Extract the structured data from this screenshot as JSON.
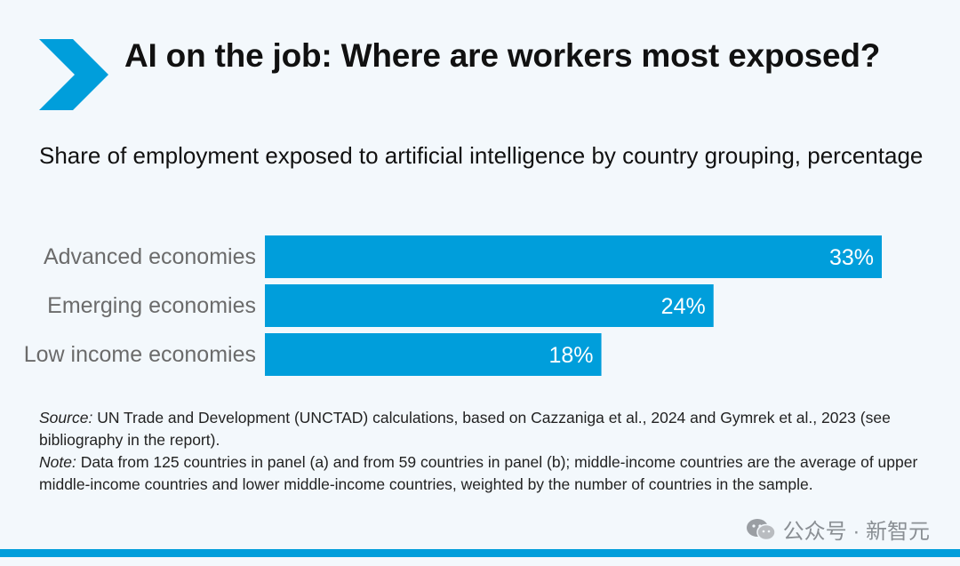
{
  "header": {
    "title": "AI on the job: Where are workers most exposed?",
    "subtitle": "Share of employment exposed to artificial intelligence by country grouping, percentage"
  },
  "chart_data": {
    "type": "bar",
    "orientation": "horizontal",
    "categories": [
      "Advanced economies",
      "Emerging economies",
      "Low income economies"
    ],
    "values": [
      33,
      24,
      18
    ],
    "value_labels": [
      "33%",
      "24%",
      "18%"
    ],
    "title": "",
    "xlabel": "",
    "ylabel": "",
    "xlim": [
      0,
      33
    ],
    "grid": false,
    "bar_color": "#009edb"
  },
  "notes": {
    "source_label": "Source:",
    "source_text": "UN Trade and Development (UNCTAD) calculations, based on Cazzaniga et al., 2024 and Gymrek et al., 2023 (see bibliography in the report).",
    "note_label": "Note:",
    "note_text": "Data from 125 countries in panel (a) and from 59 countries in panel (b); middle-income countries are the average of upper middle-income countries and lower middle-income countries, weighted by the number of countries in the sample."
  },
  "watermark": {
    "icon": "wechat-icon",
    "text": "公众号 · 新智元"
  },
  "colors": {
    "accent": "#009edb",
    "background": "#f3f8fc",
    "category_label": "#6b6b6b"
  }
}
